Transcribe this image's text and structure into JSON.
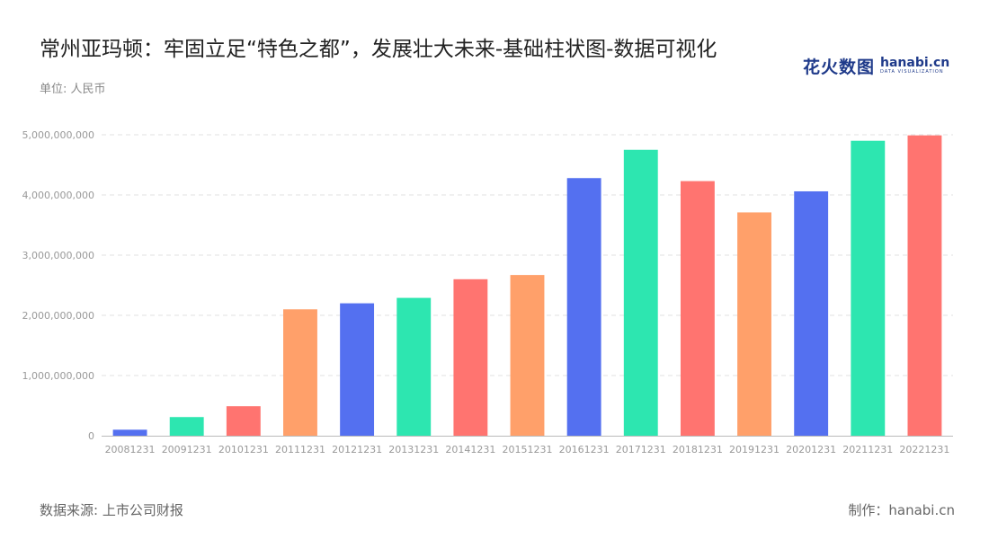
{
  "header": {
    "title": "常州亚玛顿：牢固立足“特色之都”，发展壮大未来-基础柱状图-数据可视化",
    "unit": "单位: 人民币"
  },
  "logo": {
    "cn": "花火数图",
    "en": "hanabi.cn",
    "en_sub": "DATA VISUALIZATION"
  },
  "footer": {
    "source": "数据来源: 上市公司财报",
    "credit": "制作：hanabi.cn"
  },
  "chart_data": {
    "type": "bar",
    "categories": [
      "20081231",
      "20091231",
      "20101231",
      "20111231",
      "20121231",
      "20131231",
      "20141231",
      "20151231",
      "20161231",
      "20171231",
      "20181231",
      "20191231",
      "20201231",
      "20211231",
      "20221231"
    ],
    "values": [
      100000000,
      310000000,
      490000000,
      2100000000,
      2200000000,
      2290000000,
      2600000000,
      2670000000,
      4280000000,
      4750000000,
      4230000000,
      3710000000,
      4060000000,
      4900000000,
      4990000000
    ],
    "colors": [
      "#5470f0",
      "#2de6b0",
      "#ff7470",
      "#ffa06a"
    ],
    "ylim": [
      0,
      5000000000
    ],
    "yticks": [
      0,
      1000000000,
      2000000000,
      3000000000,
      4000000000,
      5000000000
    ],
    "ytick_labels": [
      "0",
      "1,000,000,000",
      "2,000,000,000",
      "3,000,000,000",
      "4,000,000,000",
      "5,000,000,000"
    ],
    "grid": true,
    "title": "",
    "xlabel": "",
    "ylabel": ""
  }
}
